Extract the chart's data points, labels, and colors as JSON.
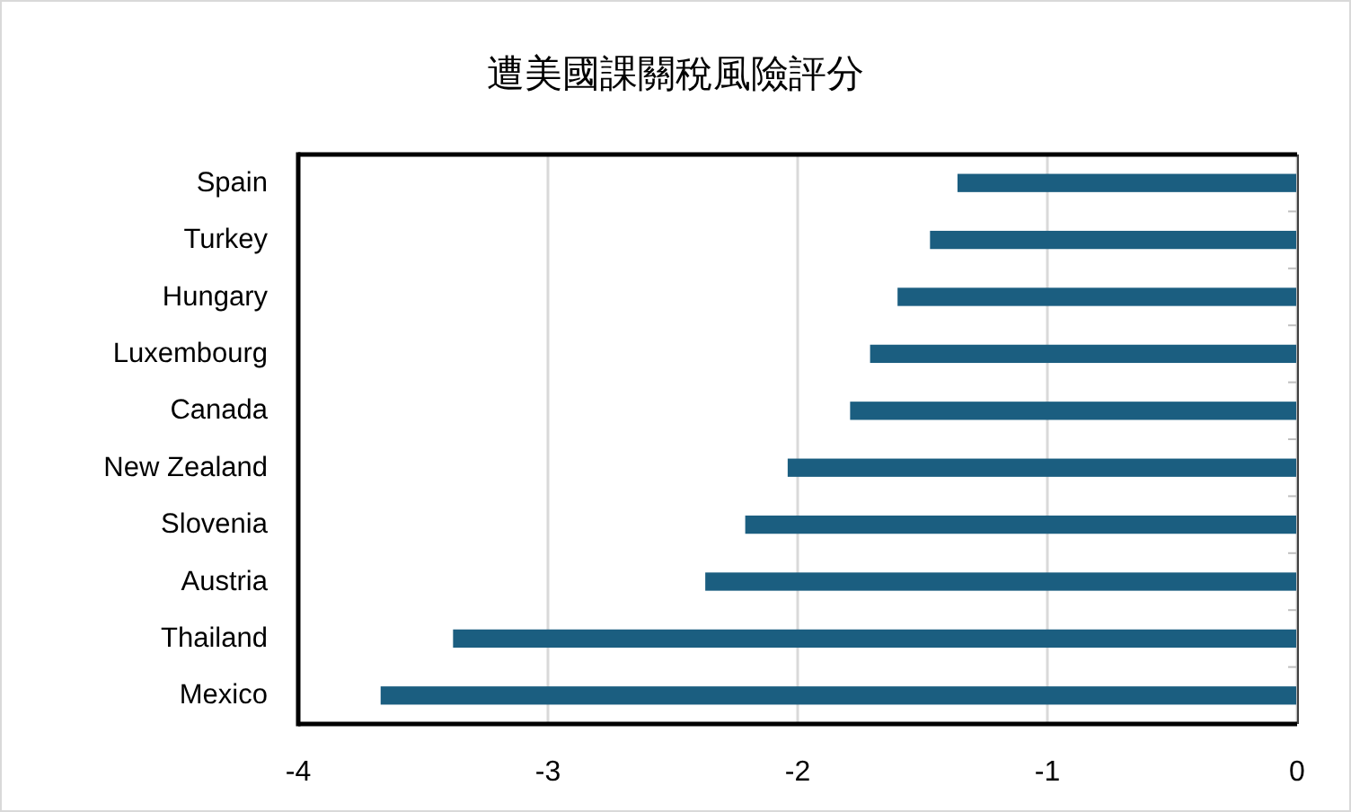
{
  "chart_data": {
    "type": "bar",
    "orientation": "horizontal",
    "title": "遭美國課關稅風險評分",
    "categories": [
      "Spain",
      "Turkey",
      "Hungary",
      "Luxembourg",
      "Canada",
      "New Zealand",
      "Slovenia",
      "Austria",
      "Thailand",
      "Mexico"
    ],
    "values": [
      -1.36,
      -1.47,
      -1.6,
      -1.71,
      -1.79,
      -2.04,
      -2.21,
      -2.37,
      -3.38,
      -3.67
    ],
    "color": "#1b5e80",
    "xlim": [
      -4,
      0
    ],
    "xticks": [
      -4,
      -3,
      -2,
      -1,
      0
    ],
    "grid": "x"
  }
}
